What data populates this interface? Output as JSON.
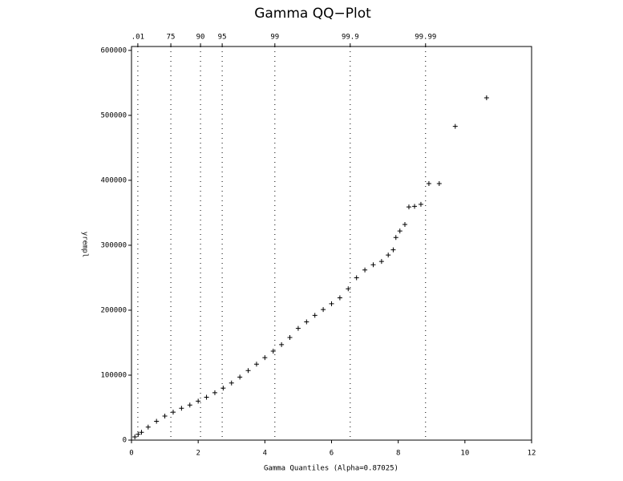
{
  "chart_data": {
    "type": "scatter",
    "title": "Gamma QQ−Plot",
    "x_label": "Gamma Quantiles (Alpha=0.87025)",
    "y_label": "yrempl",
    "color": "#000000",
    "x": [
      0,
      0.1,
      0.2,
      0.3,
      0.5,
      0.75,
      1,
      1.25,
      1.5,
      1.75,
      2,
      2.25,
      2.5,
      2.75,
      3,
      3.25,
      3.5,
      3.75,
      4,
      4.25,
      4.5,
      4.75,
      5,
      5.25,
      5.5,
      5.75,
      6,
      6.25,
      6.5,
      6.75,
      7,
      7.25,
      7.5,
      7.7,
      7.85,
      7.93,
      8.05,
      8.2,
      8.32,
      8.49,
      8.68,
      8.92,
      9.23,
      9.71,
      10.65
    ],
    "values": [
      0,
      5000,
      9000,
      12000,
      20000,
      29000,
      37000,
      43000,
      49000,
      54000,
      60000,
      66000,
      73000,
      80000,
      88000,
      97000,
      107000,
      117000,
      127000,
      137000,
      147000,
      158000,
      172000,
      182000,
      192000,
      201000,
      210000,
      219000,
      233000,
      250000,
      262000,
      270000,
      275000,
      285000,
      293000,
      312000,
      322000,
      332000,
      359000,
      360000,
      363000,
      395000,
      395000,
      483000,
      527000
    ],
    "xlim": [
      0,
      12
    ],
    "xticks": [
      0,
      2,
      4,
      6,
      8,
      10,
      12
    ],
    "ylim": [
      0,
      606000
    ],
    "yticks": [
      0,
      100000,
      200000,
      300000,
      400000,
      500000,
      600000
    ],
    "top_ticks": [
      {
        "value": 0.19,
        "label": ".01"
      },
      {
        "value": 1.18,
        "label": "75"
      },
      {
        "value": 2.07,
        "label": "90"
      },
      {
        "value": 2.72,
        "label": "95"
      },
      {
        "value": 4.3,
        "label": "99"
      },
      {
        "value": 6.56,
        "label": "99.9"
      },
      {
        "value": 8.82,
        "label": "99.99"
      }
    ]
  }
}
